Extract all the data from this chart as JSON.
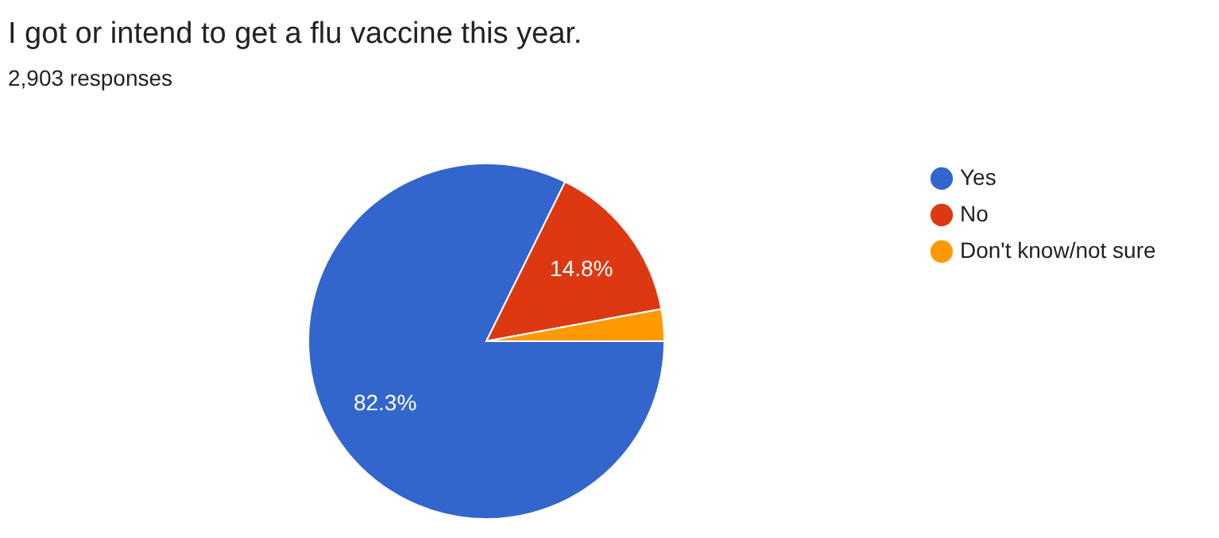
{
  "chart_data": {
    "type": "pie",
    "title": "I got or intend to get a flu vaccine this year.",
    "subtitle": "2,903 responses",
    "categories": [
      "Yes",
      "No",
      "Don't know/not sure"
    ],
    "values": [
      82.3,
      14.8,
      2.9
    ],
    "colors": [
      "#3366cc",
      "#dc3912",
      "#ff9900"
    ],
    "value_labels": [
      "82.3%",
      "14.8%",
      null
    ],
    "legend": "right"
  }
}
